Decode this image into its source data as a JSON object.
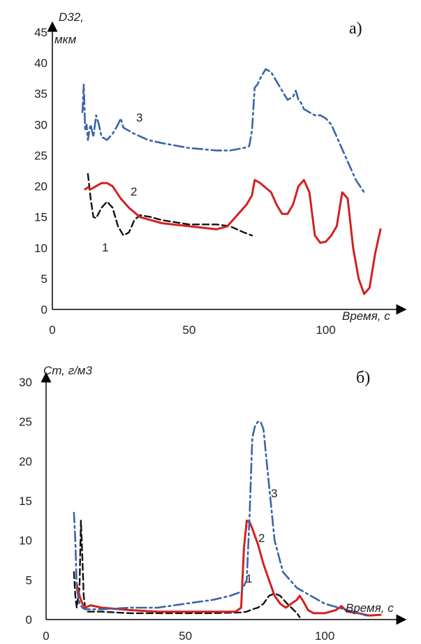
{
  "chart_data": [
    {
      "type": "line",
      "panel_label": "а)",
      "ylabel": "D32, мкм",
      "ylabel_lines": [
        "D32,",
        "мкм"
      ],
      "xlabel": "Время, с",
      "xlim": [
        0,
        120
      ],
      "ylim": [
        0,
        45
      ],
      "xticks": [
        "0",
        "50",
        "100"
      ],
      "yticks": [
        "0",
        "5",
        "10",
        "15",
        "20",
        "25",
        "30",
        "35",
        "40",
        "45"
      ],
      "series": [
        {
          "name": "1",
          "color": "#111111",
          "dash": "black-dashed",
          "x": [
            13,
            14,
            15,
            16,
            18,
            20,
            22,
            24,
            26,
            28,
            30,
            32,
            36,
            40,
            50,
            60,
            65,
            70,
            73
          ],
          "y": [
            22,
            18,
            15,
            14.8,
            16.5,
            17.5,
            16.5,
            13.5,
            12,
            12.5,
            14.5,
            15.3,
            15,
            14.5,
            13.8,
            13.8,
            13.5,
            12.5,
            12
          ]
        },
        {
          "name": "2",
          "color": "#d42020",
          "dash": "solid",
          "x": [
            12,
            13,
            14,
            16,
            18,
            20,
            22,
            25,
            28,
            32,
            40,
            50,
            60,
            64,
            68,
            71,
            73,
            74,
            76,
            80,
            82,
            84,
            86,
            88,
            90,
            92,
            94,
            96,
            98,
            100,
            102,
            104,
            106,
            108,
            110,
            112,
            114,
            116,
            118,
            120
          ],
          "y": [
            19.5,
            19.8,
            19.5,
            20,
            20.5,
            20.5,
            20,
            18,
            16.5,
            15,
            14,
            13.5,
            13,
            13.5,
            15.5,
            17,
            18.5,
            21,
            20.5,
            19,
            17,
            15.5,
            15.5,
            17,
            20,
            21,
            19,
            12,
            10.8,
            11,
            12,
            13.5,
            19,
            18,
            10,
            5,
            2.5,
            3.5,
            9,
            13
          ]
        },
        {
          "name": "3",
          "color": "#3a64a8",
          "dash": "dash-dot",
          "x": [
            11,
            11.5,
            12,
            12.5,
            13,
            13.5,
            14,
            15,
            16,
            17,
            18,
            20,
            22,
            24,
            25,
            26,
            28,
            30,
            35,
            40,
            50,
            60,
            65,
            70,
            72,
            73,
            74,
            75,
            76,
            78,
            80,
            82,
            84,
            86,
            88,
            89,
            90,
            91,
            92,
            94,
            96,
            98,
            100,
            102,
            105,
            108,
            111,
            114
          ],
          "y": [
            32,
            36.5,
            29,
            30,
            27.5,
            29,
            30,
            28,
            31.5,
            30,
            28,
            27.5,
            28.5,
            30,
            31,
            29.5,
            29,
            28.5,
            27.5,
            27,
            26.2,
            25.8,
            25.8,
            26.2,
            26.5,
            29,
            36,
            36.5,
            37.5,
            39,
            38.5,
            37,
            35.5,
            34,
            34.5,
            35.5,
            34,
            33.5,
            32.5,
            32,
            31.5,
            31.5,
            31,
            30,
            27,
            24,
            21,
            19
          ]
        }
      ],
      "series_labels": [
        "1",
        "2",
        "3"
      ]
    },
    {
      "type": "line",
      "panel_label": "б)",
      "ylabel": "Ст, г/м3",
      "xlabel": "Время, с",
      "xlim": [
        0,
        120
      ],
      "ylim": [
        0,
        30
      ],
      "xticks": [
        "0",
        "50",
        "100"
      ],
      "yticks": [
        "0",
        "5",
        "10",
        "15",
        "20",
        "25",
        "30"
      ],
      "series": [
        {
          "name": "1",
          "color": "#111111",
          "dash": "black-dashed",
          "x": [
            10,
            10.5,
            11,
            12,
            12.5,
            13,
            13.5,
            14,
            15,
            20,
            30,
            40,
            50,
            60,
            70,
            72,
            74,
            76,
            78,
            80,
            82,
            84,
            86,
            88,
            90,
            91
          ],
          "y": [
            6,
            3,
            1.5,
            4,
            12.5,
            8,
            3,
            1.5,
            1,
            1,
            0.8,
            0.8,
            0.8,
            0.8,
            0.9,
            1,
            1.3,
            1.5,
            2,
            3,
            3.3,
            3,
            2.2,
            1.5,
            0.8,
            0.3
          ]
        },
        {
          "name": "2",
          "color": "#d42020",
          "dash": "solid",
          "x": [
            11,
            12,
            13,
            14,
            16,
            20,
            30,
            40,
            50,
            60,
            68,
            70,
            71,
            72,
            73,
            74,
            75,
            76,
            78,
            80,
            82,
            84,
            86,
            88,
            90,
            91,
            92,
            94,
            96,
            98,
            100,
            104,
            106,
            108,
            112,
            116,
            120
          ],
          "y": [
            4.5,
            3,
            2,
            1.5,
            1.8,
            1.5,
            1.2,
            1,
            1,
            1,
            1,
            1.5,
            9,
            12.5,
            12.3,
            11.5,
            10.5,
            9.5,
            7,
            5,
            3,
            2,
            1.5,
            2,
            2.5,
            3,
            2.5,
            1.2,
            0.8,
            0.8,
            0.8,
            1.2,
            1.7,
            1,
            0.8,
            0.5,
            0.6
          ]
        },
        {
          "name": "3",
          "color": "#3a64a8",
          "dash": "dash-dot",
          "x": [
            10,
            10.5,
            11,
            12,
            13,
            14,
            16,
            20,
            30,
            40,
            50,
            60,
            66,
            70,
            72,
            73,
            74,
            75,
            76,
            77,
            78,
            80,
            82,
            85,
            90,
            95,
            100,
            105,
            110,
            115
          ],
          "y": [
            13.5,
            10,
            4,
            2,
            1.5,
            1.3,
            1.3,
            1.3,
            1.5,
            1.5,
            2,
            2.5,
            3,
            3.5,
            5,
            13,
            23,
            24.5,
            25,
            25,
            24,
            17,
            10,
            6,
            4,
            3,
            2,
            1.5,
            1,
            0.5
          ]
        }
      ],
      "series_labels": [
        "1",
        "2",
        "3"
      ]
    }
  ]
}
